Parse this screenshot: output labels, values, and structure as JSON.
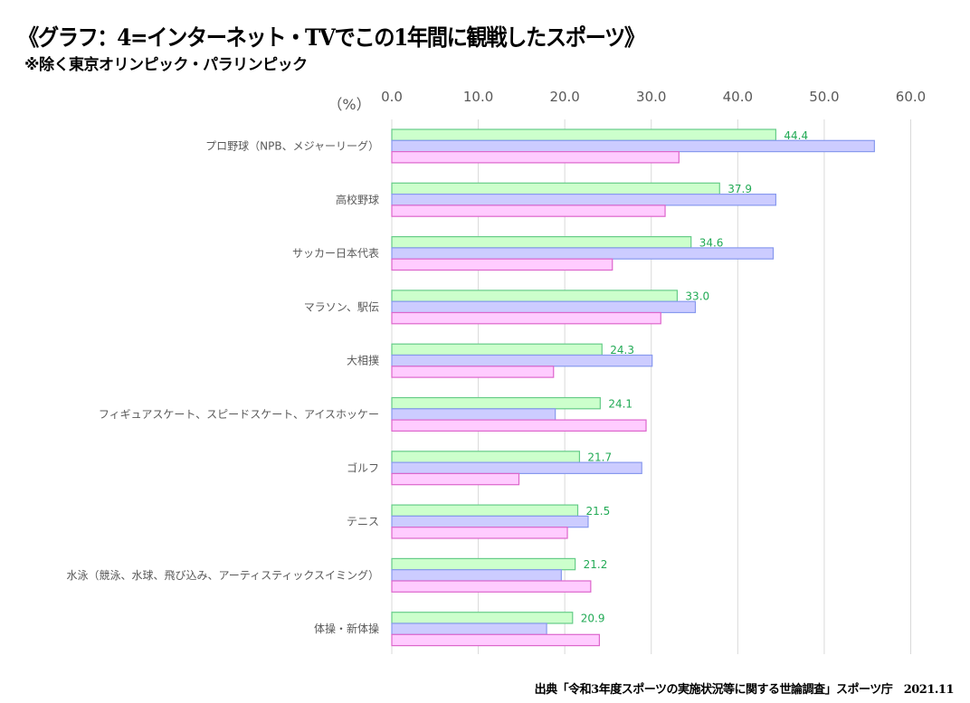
{
  "header": {
    "title": "《グラフ：4=インターネット・TVでこの1年間に観戦したスポーツ》",
    "subtitle": "※除く東京オリンピック・パラリンピック"
  },
  "footer": {
    "source": "出典「令和3年度スポーツの実施状況等に関する世論調査」スポーツ庁　2021.11"
  },
  "chart_data": {
    "type": "bar",
    "orientation": "horizontal",
    "title": "《グラフ：4=インターネット・TVでこの1年間に観戦したスポーツ》",
    "subtitle": "※除く東京オリンピック・パラリンピック",
    "unit_label": "（%）",
    "xlabel": "",
    "ylabel": "",
    "xlim": [
      0,
      60
    ],
    "x_ticks": [
      "0.0",
      "10.0",
      "20.0",
      "30.0",
      "40.0",
      "50.0",
      "60.0"
    ],
    "x_tick_values": [
      0,
      10,
      20,
      30,
      40,
      50,
      60
    ],
    "axis_position": "top",
    "grid": true,
    "legend": "none",
    "categories": [
      "プロ野球（NPB、メジャーリーグ）",
      "高校野球",
      "サッカー日本代表",
      "マラソン、駅伝",
      "大相撲",
      "フィギュアスケート、スピードスケート、アイスホッケー",
      "ゴルフ",
      "テニス",
      "水泳（競泳、水球、飛び込み、アーティスティックスイミング）",
      "体操・新体操"
    ],
    "series": [
      {
        "name": "series-green",
        "fill": "#ccffcc",
        "stroke": "#66cc88",
        "values": [
          44.4,
          37.9,
          34.6,
          33.0,
          24.3,
          24.1,
          21.7,
          21.5,
          21.2,
          20.9
        ],
        "labels": [
          "44.4",
          "37.9",
          "34.6",
          "33.0",
          "24.3",
          "24.1",
          "21.7",
          "21.5",
          "21.2",
          "20.9"
        ],
        "label_color": "#22aa55"
      },
      {
        "name": "series-blue",
        "fill": "#ccccff",
        "stroke": "#8899ee",
        "values": [
          55.8,
          44.4,
          44.1,
          35.1,
          30.1,
          18.9,
          28.9,
          22.7,
          19.6,
          17.9
        ]
      },
      {
        "name": "series-pink",
        "fill": "#ffccff",
        "stroke": "#dd66cc",
        "values": [
          33.2,
          31.6,
          25.5,
          31.1,
          18.7,
          29.4,
          14.7,
          20.3,
          23.0,
          24.0
        ]
      }
    ],
    "source": "出典「令和3年度スポーツの実施状況等に関する世論調査」スポーツ庁　2021.11"
  }
}
